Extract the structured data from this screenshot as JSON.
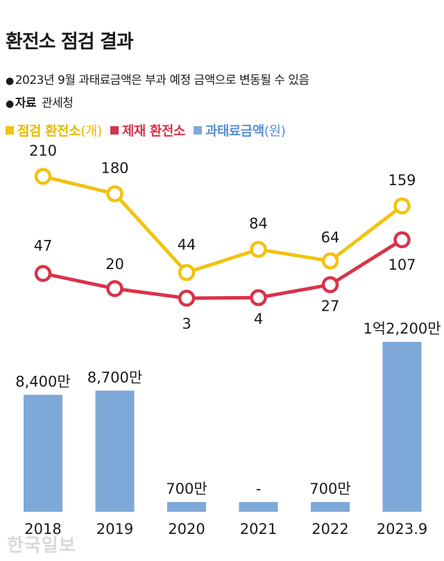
{
  "header": {
    "title": "환전소 점검 결과",
    "note1": "2023년 9월 과태료금액은 부과 예정 금액으로 변동될 수 있음",
    "note2_key": "자료",
    "note2_value": "관세청"
  },
  "legend": {
    "inspection_label": "점검 환전소",
    "inspection_unit": "(개)",
    "sanction_label": "제재 환전소",
    "fine_label": "과태료금액",
    "fine_unit": "(원)"
  },
  "colors": {
    "inspection": "#f2c20f",
    "sanction": "#d8334a",
    "fine": "#7ea8d8",
    "text": "#1a1a1a"
  },
  "watermark": "한국일보",
  "chart_data": {
    "type": "line+bar",
    "categories": [
      "2018",
      "2019",
      "2020",
      "2021",
      "2022",
      "2023.9"
    ],
    "series": [
      {
        "name": "점검 환전소",
        "unit": "개",
        "type": "line",
        "values": [
          210,
          180,
          44,
          84,
          64,
          159
        ],
        "labels": [
          "210",
          "180",
          "44",
          "84",
          "64",
          "159"
        ]
      },
      {
        "name": "제재 환전소",
        "type": "line",
        "values": [
          47,
          20,
          3,
          4,
          27,
          107
        ],
        "labels": [
          "47",
          "20",
          "3",
          "4",
          "27",
          "107"
        ]
      },
      {
        "name": "과태료금액",
        "unit": "원",
        "type": "bar",
        "values": [
          84000000,
          87000000,
          7000000,
          0,
          7000000,
          122000000
        ],
        "labels": [
          "8,400만",
          "8,700만",
          "700만",
          "-",
          "700만",
          "1억2,200만"
        ]
      }
    ]
  }
}
